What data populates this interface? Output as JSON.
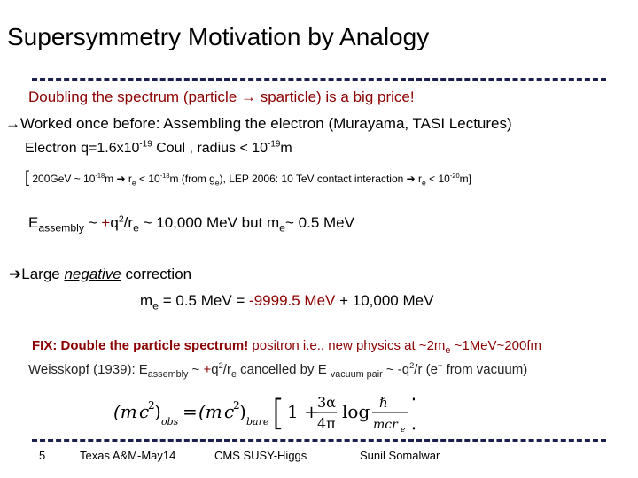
{
  "title": "Supersymmetry Motivation by Analogy",
  "line1": "Doubling the spectrum (particle → sparticle) is a big price!",
  "line2": "→Worked once before: Assembling the electron (Murayama, TASI Lectures)",
  "line3": {
    "a": "Electron q=1.6x10",
    "exp1": "-19",
    "b": " Coul , radius < 10",
    "exp2": "-19",
    "c": "m"
  },
  "line4": {
    "bracket_open": "[",
    "a": " 200GeV ~ 10",
    "exp1": "-18",
    "b": "m  ➔ r",
    "sub1": "e",
    "c": " < 10",
    "exp2": "-18",
    "d": "m (from g",
    "sub2": "e",
    "e": "), LEP 2006: 10 TeV contact interaction ➔ r",
    "sub3": "e",
    "f": " < 10",
    "exp3": "-20",
    "g": "m",
    "bracket_close": "]"
  },
  "line5": {
    "a": "E",
    "sub1": "assembly",
    "b": " ~ ",
    "plus": "+",
    "c": "q",
    "exp1": "2",
    "d": "/r",
    "sub2": "e",
    "e": " ~ 10,000 MeV but m",
    "sub3": "e",
    "f": "~ 0.5 MeV"
  },
  "line6": {
    "arrow": "➔",
    "a": "Large ",
    "neg": "negative",
    "b": " correction"
  },
  "line7": {
    "a": "m",
    "sub1": "e",
    "b": " = 0.5 MeV = ",
    "neg": "-9999.5 MeV",
    "c": " + 10,000 MeV"
  },
  "line8": {
    "fix": "FIX: Double the particle spectrum!",
    "a": " positron i.e., new physics at ~2m",
    "sub1": "e",
    "b": " ~1MeV~200fm"
  },
  "line9": {
    "a": "Weisskopf (1939):  E",
    "sub1": "assembly",
    "b": " ~ ",
    "plus": "+",
    "c": "q",
    "exp1": "2",
    "d": "/r",
    "sub2": "e",
    "e": " cancelled by E ",
    "sub3": "vacuum pair",
    "f": " ~ -q",
    "exp2": "2",
    "g": "/r   (e",
    "exp3": "+",
    "h": " from vacuum)"
  },
  "footer": {
    "page": "5",
    "venue": "Texas A&M-May14",
    "group": "CMS SUSY-Higgs",
    "author": "Sunil Somalwar"
  },
  "colors": {
    "red": "#8b0000",
    "dash": "#1a1f4f"
  }
}
